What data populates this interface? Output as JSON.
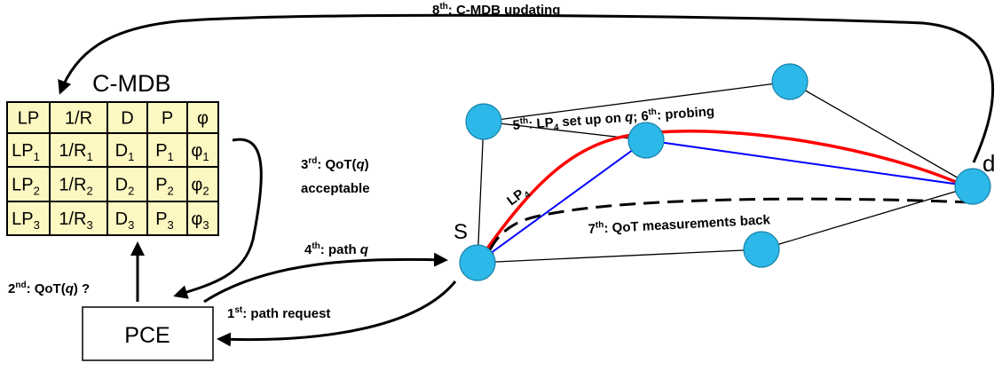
{
  "db_title": "C-MDB",
  "pce_label": "PCE",
  "source_label": "S",
  "dest_label": "d",
  "lp4_label": "LP",
  "lp4_sub": "4",
  "table": {
    "header": [
      "LP",
      "1/R",
      "D",
      "P",
      "φ"
    ],
    "rows": [
      [
        {
          "t": "LP",
          "s": "1"
        },
        {
          "t": "1/R",
          "s": "1"
        },
        {
          "t": "D",
          "s": "1"
        },
        {
          "t": "P",
          "s": "1"
        },
        {
          "t": "φ",
          "s": "1"
        }
      ],
      [
        {
          "t": "LP",
          "s": "2"
        },
        {
          "t": "1/R",
          "s": "2"
        },
        {
          "t": "D",
          "s": "2"
        },
        {
          "t": "P",
          "s": "2"
        },
        {
          "t": "φ",
          "s": "2"
        }
      ],
      [
        {
          "t": "LP",
          "s": "3"
        },
        {
          "t": "1/R",
          "s": "3"
        },
        {
          "t": "D",
          "s": "3"
        },
        {
          "t": "P",
          "s": "3"
        },
        {
          "t": "φ",
          "s": "3"
        }
      ]
    ]
  },
  "steps": {
    "s1": {
      "num": "1",
      "sup": "st",
      "text": ": path request"
    },
    "s2": {
      "num": "2",
      "sup": "nd",
      "pre": ": QoT(",
      "var": "q",
      "post": ") ?"
    },
    "s3": {
      "num": "3",
      "sup": "rd",
      "pre": ": QoT(",
      "var": "q",
      "post": ")",
      "line2": "acceptable"
    },
    "s4": {
      "num": "4",
      "sup": "th",
      "pre": ": path ",
      "var": "q"
    },
    "s5": {
      "num": "5",
      "sup": "th",
      "pre": ": LP",
      "sub": "4",
      "mid": " set up on ",
      "var": "q",
      "semi": "; ",
      "num6": "6",
      "sup6": "th",
      "post": ": probing"
    },
    "s7": {
      "num": "7",
      "sup": "th",
      "text": ": QoT measurements back"
    },
    "s8": {
      "num": "8",
      "sup": "th",
      "text": ": C-MDB updating"
    }
  },
  "colors": {
    "node": "#2cb8e8",
    "table_bg": "#fdf8c2",
    "red_path": "#ff0000",
    "blue_path": "#0000ff"
  }
}
